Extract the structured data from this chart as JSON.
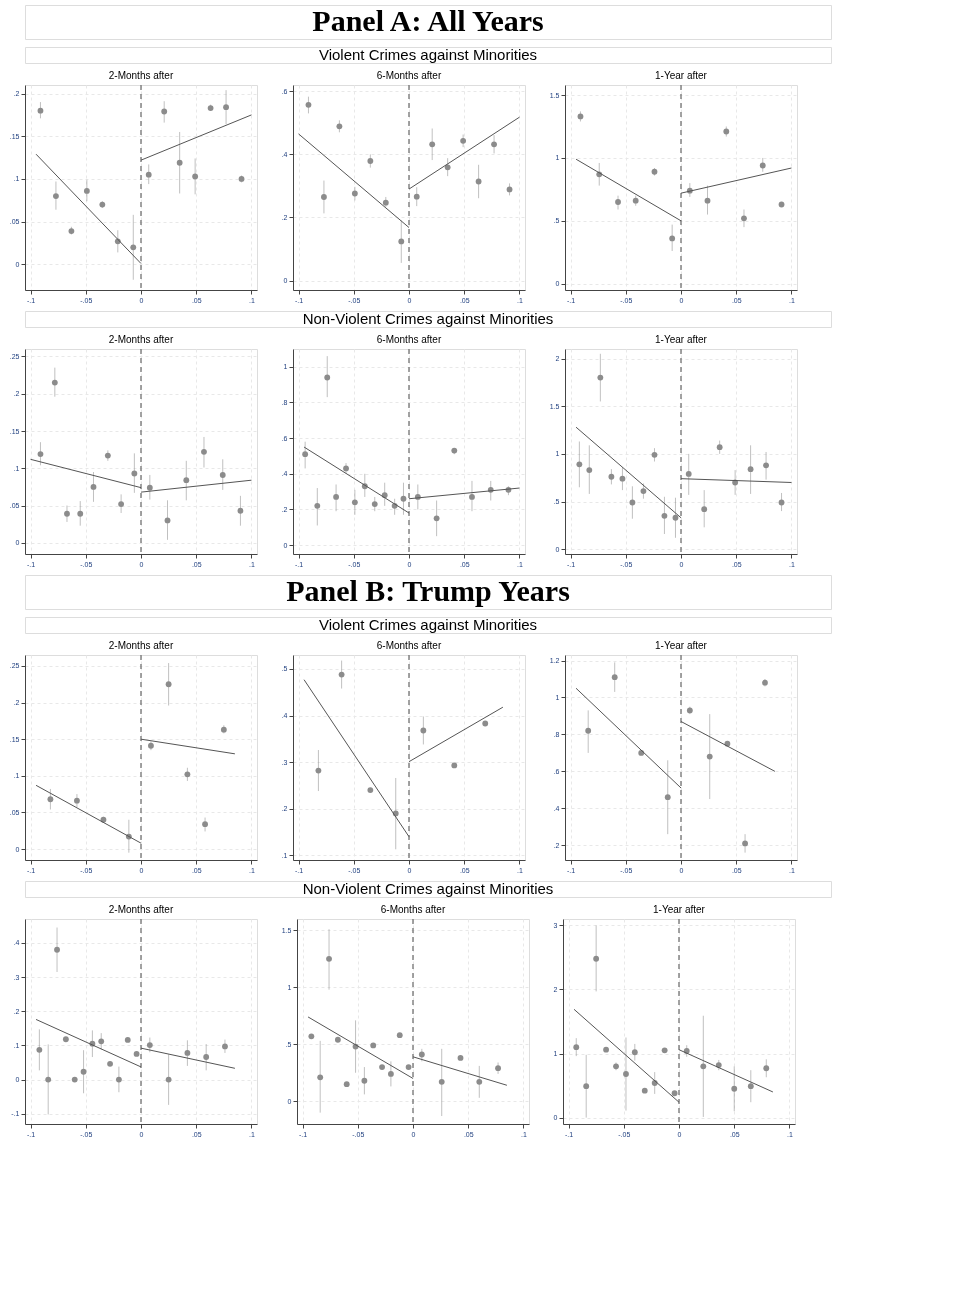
{
  "chart_data": [
    {
      "type": "scatter",
      "annotations": [
        "Panel A: All Years"
      ],
      "subtitle": "2-Months after",
      "xlim": [
        -0.105,
        0.105
      ],
      "xticks": [
        {
          "value": -0.1,
          "label": "-.1"
        },
        {
          "value": -0.05,
          "label": "-.05"
        },
        0,
        {
          "value": 0.05,
          "label": ".05"
        },
        {
          "value": 0.1,
          "label": ".1"
        }
      ],
      "ylim": [
        -0.03,
        0.21
      ],
      "yticks": [
        0,
        {
          "value": 0.05,
          "label": ".05"
        },
        {
          "value": 0.1,
          "label": ".1"
        },
        {
          "value": 0.15,
          "label": ".15"
        },
        {
          "value": 0.2,
          "label": ".2"
        }
      ],
      "grid": true,
      "series": [
        {
          "marker": "circle",
          "color": "#8c8c8c",
          "x": [
            -0.091,
            -0.077,
            -0.063,
            -0.049,
            -0.035,
            -0.021,
            -0.007,
            0.007,
            0.021,
            0.035,
            0.049,
            0.063,
            0.077,
            0.091
          ],
          "values": [
            0.18,
            0.08,
            0.039,
            0.086,
            0.07,
            0.027,
            0.02,
            0.105,
            0.179,
            0.119,
            0.103,
            0.183,
            0.184,
            0.1
          ],
          "errors": [
            [
              0.171,
              0.19
            ],
            [
              0.064,
              0.097
            ],
            [
              0.035,
              0.044
            ],
            [
              0.074,
              0.099
            ],
            [
              0.066,
              0.074
            ],
            [
              0.014,
              0.04
            ],
            [
              -0.018,
              0.058
            ],
            [
              0.094,
              0.117
            ],
            [
              0.166,
              0.191
            ],
            [
              0.083,
              0.155
            ],
            [
              0.082,
              0.124
            ],
            [
              0.18,
              0.187
            ],
            [
              0.164,
              0.204
            ],
            [
              0.096,
              0.104
            ]
          ]
        },
        {
          "type": "line",
          "marker": "none",
          "color": "#555555",
          "line_style": "solid",
          "x": [
            -0.095,
            0
          ],
          "values": [
            0.129,
            0.001
          ]
        },
        {
          "type": "line",
          "marker": "none",
          "color": "#555555",
          "line_style": "solid",
          "x": [
            0,
            0.1
          ],
          "values": [
            0.122,
            0.175
          ]
        }
      ],
      "ref_lines": [
        {
          "axis": "x",
          "value": 0,
          "color": "#666666",
          "line_style": "dashed"
        }
      ]
    },
    {
      "type": "scatter",
      "title": "Violent Crimes against Minorities",
      "subtitle": "6-Months after",
      "xlim": [
        -0.105,
        0.105
      ],
      "xticks": [
        {
          "value": -0.1,
          "label": "-.1"
        },
        {
          "value": -0.05,
          "label": "-.05"
        },
        0,
        {
          "value": 0.05,
          "label": ".05"
        },
        {
          "value": 0.1,
          "label": ".1"
        }
      ],
      "ylim": [
        -0.03,
        0.62
      ],
      "yticks": [
        0,
        {
          "value": 0.2,
          "label": ".2"
        },
        {
          "value": 0.4,
          "label": ".4"
        },
        {
          "value": 0.6,
          "label": ".6"
        }
      ],
      "grid": true,
      "series": [
        {
          "marker": "circle",
          "color": "#8c8c8c",
          "x": [
            -0.091,
            -0.077,
            -0.063,
            -0.049,
            -0.035,
            -0.021,
            -0.007,
            0.007,
            0.021,
            0.035,
            0.049,
            0.063,
            0.077,
            0.091
          ],
          "values": [
            0.557,
            0.265,
            0.489,
            0.276,
            0.379,
            0.247,
            0.124,
            0.266,
            0.432,
            0.359,
            0.443,
            0.314,
            0.432,
            0.289
          ],
          "errors": [
            [
              0.53,
              0.583
            ],
            [
              0.213,
              0.317
            ],
            [
              0.47,
              0.508
            ],
            [
              0.254,
              0.297
            ],
            [
              0.358,
              0.4
            ],
            [
              0.233,
              0.265
            ],
            [
              0.056,
              0.191
            ],
            [
              0.236,
              0.296
            ],
            [
              0.382,
              0.482
            ],
            [
              0.331,
              0.388
            ],
            [
              0.423,
              0.463
            ],
            [
              0.261,
              0.367
            ],
            [
              0.403,
              0.461
            ],
            [
              0.27,
              0.308
            ]
          ]
        },
        {
          "type": "line",
          "marker": "none",
          "color": "#555555",
          "line_style": "solid",
          "x": [
            -0.1,
            0
          ],
          "values": [
            0.465,
            0.168
          ]
        },
        {
          "type": "line",
          "marker": "none",
          "color": "#555555",
          "line_style": "solid",
          "x": [
            0,
            0.1
          ],
          "values": [
            0.29,
            0.518
          ]
        }
      ],
      "ref_lines": [
        {
          "axis": "x",
          "value": 0,
          "color": "#666666",
          "line_style": "dashed"
        }
      ]
    },
    {
      "type": "scatter",
      "subtitle": "1-Year after",
      "xlim": [
        -0.105,
        0.105
      ],
      "xticks": [
        {
          "value": -0.1,
          "label": "-.1"
        },
        {
          "value": -0.05,
          "label": "-.05"
        },
        0,
        {
          "value": 0.05,
          "label": ".05"
        },
        {
          "value": 0.1,
          "label": ".1"
        }
      ],
      "ylim": [
        -0.05,
        1.58
      ],
      "yticks": [
        0,
        {
          "value": 0.5,
          "label": ".5"
        },
        1,
        1.5
      ],
      "grid": true,
      "series": [
        {
          "marker": "circle",
          "color": "#8c8c8c",
          "x": [
            -0.091,
            -0.074,
            -0.057,
            -0.041,
            -0.024,
            -0.008,
            0.008,
            0.024,
            0.041,
            0.057,
            0.074,
            0.091
          ],
          "values": [
            1.33,
            0.87,
            0.65,
            0.66,
            0.89,
            0.36,
            0.74,
            0.66,
            1.21,
            0.52,
            0.94,
            0.63
          ],
          "errors": [
            [
              1.29,
              1.37
            ],
            [
              0.78,
              0.96
            ],
            [
              0.59,
              0.7
            ],
            [
              0.62,
              0.7
            ],
            [
              0.86,
              0.92
            ],
            [
              0.26,
              0.47
            ],
            [
              0.69,
              0.8
            ],
            [
              0.55,
              0.78
            ],
            [
              1.17,
              1.25
            ],
            [
              0.45,
              0.59
            ],
            [
              0.89,
              1.0
            ],
            [
              0.61,
              0.65
            ]
          ]
        },
        {
          "type": "line",
          "marker": "none",
          "color": "#555555",
          "line_style": "solid",
          "x": [
            -0.095,
            0
          ],
          "values": [
            0.99,
            0.5
          ]
        },
        {
          "type": "line",
          "marker": "none",
          "color": "#555555",
          "line_style": "solid",
          "x": [
            0,
            0.1
          ],
          "values": [
            0.72,
            0.92
          ]
        }
      ],
      "ref_lines": [
        {
          "axis": "x",
          "value": 0,
          "color": "#666666",
          "line_style": "dashed"
        }
      ]
    },
    {
      "type": "scatter",
      "subtitle": "2-Months after",
      "xlim": [
        -0.105,
        0.105
      ],
      "xticks": [
        {
          "value": -0.1,
          "label": "-.1"
        },
        {
          "value": -0.05,
          "label": "-.05"
        },
        0,
        {
          "value": 0.05,
          "label": ".05"
        },
        {
          "value": 0.1,
          "label": ".1"
        }
      ],
      "ylim": [
        -0.015,
        0.26
      ],
      "yticks": [
        0,
        {
          "value": 0.05,
          "label": ".05"
        },
        {
          "value": 0.1,
          "label": ".1"
        },
        {
          "value": 0.15,
          "label": ".15"
        },
        {
          "value": 0.2,
          "label": ".2"
        },
        {
          "value": 0.25,
          "label": ".25"
        }
      ],
      "grid": true,
      "series": [
        {
          "marker": "circle",
          "color": "#8c8c8c",
          "x": [
            -0.091,
            -0.078,
            -0.067,
            -0.055,
            -0.043,
            -0.03,
            -0.018,
            -0.006,
            0.008,
            0.024,
            0.041,
            0.057,
            0.074,
            0.09
          ],
          "values": [
            0.119,
            0.215,
            0.039,
            0.039,
            0.075,
            0.117,
            0.052,
            0.093,
            0.074,
            0.03,
            0.084,
            0.122,
            0.091,
            0.043
          ],
          "errors": [
            [
              0.104,
              0.135
            ],
            [
              0.196,
              0.235
            ],
            [
              0.028,
              0.05
            ],
            [
              0.023,
              0.056
            ],
            [
              0.055,
              0.095
            ],
            [
              0.11,
              0.124
            ],
            [
              0.04,
              0.065
            ],
            [
              0.067,
              0.12
            ],
            [
              0.058,
              0.091
            ],
            [
              0.004,
              0.057
            ],
            [
              0.057,
              0.11
            ],
            [
              0.101,
              0.142
            ],
            [
              0.071,
              0.112
            ],
            [
              0.023,
              0.063
            ]
          ]
        },
        {
          "type": "line",
          "marker": "none",
          "color": "#555555",
          "line_style": "solid",
          "x": [
            -0.1,
            0
          ],
          "values": [
            0.112,
            0.074
          ]
        },
        {
          "type": "line",
          "marker": "none",
          "color": "#555555",
          "line_style": "solid",
          "x": [
            0,
            0.1
          ],
          "values": [
            0.068,
            0.084
          ]
        }
      ],
      "ref_lines": [
        {
          "axis": "x",
          "value": 0,
          "color": "#666666",
          "line_style": "dashed"
        }
      ]
    },
    {
      "type": "scatter",
      "title": "Non-Violent Crimes against Minorities",
      "subtitle": "6-Months after",
      "xlim": [
        -0.105,
        0.105
      ],
      "xticks": [
        {
          "value": -0.1,
          "label": "-.1"
        },
        {
          "value": -0.05,
          "label": "-.05"
        },
        0,
        {
          "value": 0.05,
          "label": ".05"
        },
        {
          "value": 0.1,
          "label": ".1"
        }
      ],
      "ylim": [
        -0.05,
        1.1
      ],
      "yticks": [
        0,
        {
          "value": 0.2,
          "label": ".2"
        },
        {
          "value": 0.4,
          "label": ".4"
        },
        {
          "value": 0.6,
          "label": ".6"
        },
        {
          "value": 0.8,
          "label": ".8"
        },
        1
      ],
      "grid": true,
      "series": [
        {
          "marker": "circle",
          "color": "#8c8c8c",
          "x": [
            -0.094,
            -0.083,
            -0.074,
            -0.066,
            -0.057,
            -0.049,
            -0.04,
            -0.031,
            -0.022,
            -0.013,
            -0.005,
            0.008,
            0.025,
            0.041,
            0.057,
            0.074,
            0.09
          ],
          "values": [
            0.51,
            0.22,
            0.94,
            0.27,
            0.43,
            0.24,
            0.33,
            0.23,
            0.28,
            0.22,
            0.26,
            0.27,
            0.15,
            0.53,
            0.27,
            0.31,
            0.31
          ],
          "errors": [
            [
              0.43,
              0.58
            ],
            [
              0.11,
              0.32
            ],
            [
              0.83,
              1.06
            ],
            [
              0.19,
              0.34
            ],
            [
              0.4,
              0.46
            ],
            [
              0.17,
              0.31
            ],
            [
              0.27,
              0.4
            ],
            [
              0.19,
              0.27
            ],
            [
              0.22,
              0.35
            ],
            [
              0.17,
              0.26
            ],
            [
              0.17,
              0.35
            ],
            [
              0.2,
              0.34
            ],
            [
              0.05,
              0.25
            ],
            [
              0.51,
              0.54
            ],
            [
              0.19,
              0.36
            ],
            [
              0.25,
              0.36
            ],
            [
              0.28,
              0.33
            ]
          ]
        },
        {
          "type": "line",
          "marker": "none",
          "color": "#555555",
          "line_style": "solid",
          "x": [
            -0.095,
            0
          ],
          "values": [
            0.55,
            0.18
          ]
        },
        {
          "type": "line",
          "marker": "none",
          "color": "#555555",
          "line_style": "solid",
          "x": [
            0,
            0.1
          ],
          "values": [
            0.26,
            0.32
          ]
        }
      ],
      "ref_lines": [
        {
          "axis": "x",
          "value": 0,
          "color": "#666666",
          "line_style": "dashed"
        }
      ]
    },
    {
      "type": "scatter",
      "subtitle": "1-Year after",
      "xlim": [
        -0.105,
        0.105
      ],
      "xticks": [
        {
          "value": -0.1,
          "label": "-.1"
        },
        {
          "value": -0.05,
          "label": "-.05"
        },
        0,
        {
          "value": 0.05,
          "label": ".05"
        },
        {
          "value": 0.1,
          "label": ".1"
        }
      ],
      "ylim": [
        -0.05,
        2.1
      ],
      "yticks": [
        0,
        {
          "value": 0.5,
          "label": ".5"
        },
        1,
        1.5,
        2
      ],
      "grid": true,
      "series": [
        {
          "marker": "circle",
          "color": "#8c8c8c",
          "x": [
            -0.092,
            -0.083,
            -0.073,
            -0.063,
            -0.053,
            -0.044,
            -0.034,
            -0.024,
            -0.015,
            -0.005,
            0.007,
            0.021,
            0.035,
            0.049,
            0.063,
            0.077,
            0.091
          ],
          "values": [
            0.89,
            0.83,
            1.8,
            0.76,
            0.74,
            0.49,
            0.61,
            0.99,
            0.35,
            0.33,
            0.79,
            0.42,
            1.07,
            0.7,
            0.84,
            0.88,
            0.49
          ],
          "errors": [
            [
              0.65,
              1.13
            ],
            [
              0.58,
              1.09
            ],
            [
              1.55,
              2.05
            ],
            [
              0.68,
              0.84
            ],
            [
              0.62,
              0.86
            ],
            [
              0.32,
              0.66
            ],
            [
              0.53,
              0.69
            ],
            [
              0.92,
              1.06
            ],
            [
              0.16,
              0.55
            ],
            [
              0.12,
              0.54
            ],
            [
              0.57,
              1.0
            ],
            [
              0.23,
              0.62
            ],
            [
              1.0,
              1.14
            ],
            [
              0.57,
              0.83
            ],
            [
              0.58,
              1.09
            ],
            [
              0.73,
              1.02
            ],
            [
              0.4,
              0.59
            ]
          ]
        },
        {
          "type": "line",
          "marker": "none",
          "color": "#555555",
          "line_style": "solid",
          "x": [
            -0.095,
            0
          ],
          "values": [
            1.28,
            0.33
          ]
        },
        {
          "type": "line",
          "marker": "none",
          "color": "#555555",
          "line_style": "solid",
          "x": [
            0,
            0.1
          ],
          "values": [
            0.74,
            0.7
          ]
        }
      ],
      "ref_lines": [
        {
          "axis": "x",
          "value": 0,
          "color": "#666666",
          "line_style": "dashed"
        }
      ]
    },
    {
      "type": "scatter",
      "annotations": [
        "Panel B: Trump Years"
      ],
      "subtitle": "2-Months after",
      "xlim": [
        -0.105,
        0.105
      ],
      "xticks": [
        {
          "value": -0.1,
          "label": "-.1"
        },
        {
          "value": -0.05,
          "label": "-.05"
        },
        0,
        {
          "value": 0.05,
          "label": ".05"
        },
        {
          "value": 0.1,
          "label": ".1"
        }
      ],
      "ylim": [
        -0.015,
        0.265
      ],
      "yticks": [
        0,
        {
          "value": 0.05,
          "label": ".05"
        },
        {
          "value": 0.1,
          "label": ".1"
        },
        {
          "value": 0.15,
          "label": ".15"
        },
        {
          "value": 0.2,
          "label": ".2"
        },
        {
          "value": 0.25,
          "label": ".25"
        }
      ],
      "grid": true,
      "series": [
        {
          "marker": "circle",
          "color": "#8c8c8c",
          "x": [
            -0.082,
            -0.058,
            -0.034,
            -0.011,
            0.009,
            0.025,
            0.042,
            0.058,
            0.075
          ],
          "values": [
            0.068,
            0.066,
            0.04,
            0.017,
            0.141,
            0.225,
            0.102,
            0.034,
            0.163
          ],
          "errors": [
            [
              0.054,
              0.082
            ],
            [
              0.057,
              0.075
            ],
            [
              0.036,
              0.044
            ],
            [
              -0.005,
              0.04
            ],
            [
              0.135,
              0.147
            ],
            [
              0.196,
              0.254
            ],
            [
              0.093,
              0.111
            ],
            [
              0.024,
              0.043
            ],
            [
              0.158,
              0.169
            ]
          ]
        },
        {
          "type": "line",
          "marker": "none",
          "color": "#555555",
          "line_style": "solid",
          "x": [
            -0.095,
            0
          ],
          "values": [
            0.087,
            0.008
          ]
        },
        {
          "type": "line",
          "marker": "none",
          "color": "#555555",
          "line_style": "solid",
          "x": [
            0,
            0.085
          ],
          "values": [
            0.15,
            0.13
          ]
        }
      ],
      "ref_lines": [
        {
          "axis": "x",
          "value": 0,
          "color": "#666666",
          "line_style": "dashed"
        }
      ]
    },
    {
      "type": "scatter",
      "title": "Violent Crimes against Minorities",
      "subtitle": "6-Months after",
      "xlim": [
        -0.105,
        0.105
      ],
      "xticks": [
        {
          "value": -0.1,
          "label": "-.1"
        },
        {
          "value": -0.05,
          "label": "-.05"
        },
        0,
        {
          "value": 0.05,
          "label": ".05"
        },
        {
          "value": 0.1,
          "label": ".1"
        }
      ],
      "ylim": [
        0.09,
        0.53
      ],
      "yticks": [
        {
          "value": 0.1,
          "label": ".1"
        },
        {
          "value": 0.2,
          "label": ".2"
        },
        {
          "value": 0.3,
          "label": ".3"
        },
        {
          "value": 0.4,
          "label": ".4"
        },
        {
          "value": 0.5,
          "label": ".5"
        }
      ],
      "grid": true,
      "series": [
        {
          "marker": "circle",
          "color": "#8c8c8c",
          "x": [
            -0.082,
            -0.061,
            -0.035,
            -0.012,
            0.013,
            0.041,
            0.069
          ],
          "values": [
            0.282,
            0.488,
            0.24,
            0.19,
            0.368,
            0.293,
            0.383
          ],
          "errors": [
            [
              0.238,
              0.326
            ],
            [
              0.458,
              0.518
            ],
            null,
            [
              0.113,
              0.266
            ],
            [
              0.338,
              0.398
            ],
            null,
            null
          ]
        },
        {
          "type": "line",
          "marker": "none",
          "color": "#555555",
          "line_style": "solid",
          "x": [
            -0.095,
            0
          ],
          "values": [
            0.477,
            0.14
          ]
        },
        {
          "type": "line",
          "marker": "none",
          "color": "#555555",
          "line_style": "solid",
          "x": [
            0,
            0.085
          ],
          "values": [
            0.301,
            0.418
          ]
        }
      ],
      "ref_lines": [
        {
          "axis": "x",
          "value": 0,
          "color": "#666666",
          "line_style": "dashed"
        }
      ]
    },
    {
      "type": "scatter",
      "subtitle": "1-Year after",
      "xlim": [
        -0.105,
        0.105
      ],
      "xticks": [
        {
          "value": -0.1,
          "label": "-.1"
        },
        {
          "value": -0.05,
          "label": "-.05"
        },
        0,
        {
          "value": 0.05,
          "label": ".05"
        },
        {
          "value": 0.1,
          "label": ".1"
        }
      ],
      "ylim": [
        0.12,
        1.23
      ],
      "yticks": [
        {
          "value": 0.2,
          "label": ".2"
        },
        {
          "value": 0.4,
          "label": ".4"
        },
        {
          "value": 0.6,
          "label": ".6"
        },
        {
          "value": 0.8,
          "label": ".8"
        },
        1,
        1.2
      ],
      "grid": true,
      "series": [
        {
          "marker": "circle",
          "color": "#8c8c8c",
          "x": [
            -0.084,
            -0.06,
            -0.036,
            -0.012,
            0.008,
            0.026,
            0.042,
            0.058,
            0.076
          ],
          "values": [
            0.82,
            1.11,
            0.7,
            0.46,
            0.93,
            0.68,
            0.75,
            0.21,
            1.08
          ],
          "errors": [
            [
              0.7,
              0.93
            ],
            [
              1.03,
              1.19
            ],
            null,
            [
              0.26,
              0.66
            ],
            [
              0.91,
              0.95
            ],
            [
              0.45,
              0.91
            ],
            null,
            [
              0.16,
              0.26
            ],
            [
              1.06,
              1.1
            ]
          ]
        },
        {
          "type": "line",
          "marker": "none",
          "color": "#555555",
          "line_style": "solid",
          "x": [
            -0.095,
            0
          ],
          "values": [
            1.05,
            0.51
          ]
        },
        {
          "type": "line",
          "marker": "none",
          "color": "#555555",
          "line_style": "solid",
          "x": [
            0,
            0.085
          ],
          "values": [
            0.87,
            0.6
          ]
        }
      ],
      "ref_lines": [
        {
          "axis": "x",
          "value": 0,
          "color": "#666666",
          "line_style": "dashed"
        }
      ]
    },
    {
      "type": "scatter",
      "subtitle": "2-Months after",
      "xlim": [
        -0.105,
        0.105
      ],
      "xticks": [
        {
          "value": -0.1,
          "label": "-.1"
        },
        {
          "value": -0.05,
          "label": "-.05"
        },
        0,
        {
          "value": 0.05,
          "label": ".05"
        },
        {
          "value": 0.1,
          "label": ".1"
        }
      ],
      "ylim": [
        -0.13,
        0.47
      ],
      "yticks": [
        {
          "value": -0.1,
          "label": "-.1"
        },
        0,
        {
          "value": 0.1,
          "label": ".1"
        },
        {
          "value": 0.2,
          "label": ".2"
        },
        {
          "value": 0.3,
          "label": ".3"
        },
        {
          "value": 0.4,
          "label": ".4"
        }
      ],
      "grid": true,
      "series": [
        {
          "marker": "circle",
          "color": "#8c8c8c",
          "x": [
            -0.092,
            -0.084,
            -0.076,
            -0.068,
            -0.06,
            -0.052,
            -0.044,
            -0.036,
            -0.028,
            -0.02,
            -0.012,
            -0.004,
            0.008,
            0.025,
            0.042,
            0.059,
            0.076
          ],
          "values": [
            0.087,
            0.0,
            0.38,
            0.118,
            0.0,
            0.023,
            0.105,
            0.112,
            0.046,
            0.0,
            0.116,
            0.075,
            0.101,
            0.0,
            0.078,
            0.066,
            0.097
          ],
          "errors": [
            [
              0.027,
              0.147
            ],
            [
              -0.102,
              0.103
            ],
            [
              0.315,
              0.445
            ],
            null,
            null,
            [
              -0.04,
              0.086
            ],
            [
              0.066,
              0.144
            ],
            [
              0.088,
              0.136
            ],
            null,
            [
              -0.037,
              0.038
            ],
            null,
            null,
            [
              0.08,
              0.123
            ],
            [
              -0.074,
              0.074
            ],
            [
              0.04,
              0.115
            ],
            [
              0.027,
              0.104
            ],
            [
              0.078,
              0.117
            ]
          ]
        },
        {
          "type": "line",
          "marker": "none",
          "color": "#555555",
          "line_style": "solid",
          "x": [
            -0.095,
            0
          ],
          "values": [
            0.176,
            0.037
          ]
        },
        {
          "type": "line",
          "marker": "none",
          "color": "#555555",
          "line_style": "solid",
          "x": [
            0,
            0.085
          ],
          "values": [
            0.092,
            0.033
          ]
        }
      ],
      "ref_lines": [
        {
          "axis": "x",
          "value": 0,
          "color": "#666666",
          "line_style": "dashed"
        }
      ]
    },
    {
      "type": "scatter",
      "title": "Non-Violent Crimes against Minorities",
      "subtitle": "6-Months after",
      "xlim": [
        -0.105,
        0.105
      ],
      "xticks": [
        {
          "value": -0.1,
          "label": "-.1"
        },
        {
          "value": -0.05,
          "label": "-.05"
        },
        0,
        {
          "value": 0.05,
          "label": ".05"
        },
        {
          "value": 0.1,
          "label": ".1"
        }
      ],
      "ylim": [
        -0.2,
        1.6
      ],
      "yticks": [
        0,
        {
          "value": 0.5,
          "label": ".5"
        },
        1,
        1.5
      ],
      "grid": true,
      "series": [
        {
          "marker": "circle",
          "color": "#8c8c8c",
          "x": [
            -0.092,
            -0.084,
            -0.076,
            -0.068,
            -0.06,
            -0.052,
            -0.044,
            -0.036,
            -0.028,
            -0.02,
            -0.012,
            -0.004,
            0.008,
            0.026,
            0.043,
            0.06,
            0.077
          ],
          "values": [
            0.57,
            0.21,
            1.25,
            0.54,
            0.15,
            0.48,
            0.18,
            0.49,
            0.3,
            0.24,
            0.58,
            0.3,
            0.41,
            0.17,
            0.38,
            0.17,
            0.29
          ],
          "errors": [
            null,
            [
              -0.1,
              0.53
            ],
            [
              0.98,
              1.51
            ],
            null,
            null,
            [
              0.25,
              0.71
            ],
            [
              0.06,
              0.3
            ],
            null,
            null,
            [
              0.13,
              0.35
            ],
            null,
            null,
            [
              0.35,
              0.46
            ],
            [
              -0.13,
              0.46
            ],
            null,
            [
              0.03,
              0.31
            ],
            [
              0.24,
              0.34
            ]
          ]
        },
        {
          "type": "line",
          "marker": "none",
          "color": "#555555",
          "line_style": "solid",
          "x": [
            -0.095,
            0
          ],
          "values": [
            0.74,
            0.2
          ]
        },
        {
          "type": "line",
          "marker": "none",
          "color": "#555555",
          "line_style": "solid",
          "x": [
            0,
            0.085
          ],
          "values": [
            0.39,
            0.14
          ]
        }
      ],
      "ref_lines": [
        {
          "axis": "x",
          "value": 0,
          "color": "#666666",
          "line_style": "dashed"
        }
      ]
    },
    {
      "type": "scatter",
      "subtitle": "1-Year after",
      "xlim": [
        -0.105,
        0.105
      ],
      "xticks": [
        {
          "value": -0.1,
          "label": "-.1"
        },
        {
          "value": -0.05,
          "label": "-.05"
        },
        0,
        {
          "value": 0.05,
          "label": ".05"
        },
        {
          "value": 0.1,
          "label": ".1"
        }
      ],
      "ylim": [
        -0.1,
        3.1
      ],
      "yticks": [
        0,
        1,
        2,
        3
      ],
      "grid": true,
      "series": [
        {
          "marker": "circle",
          "color": "#8c8c8c",
          "x": [
            -0.093,
            -0.084,
            -0.075,
            -0.066,
            -0.057,
            -0.048,
            -0.04,
            -0.031,
            -0.022,
            -0.013,
            -0.004,
            0.007,
            0.022,
            0.036,
            0.05,
            0.065,
            0.079
          ],
          "values": [
            1.1,
            0.49,
            2.48,
            1.06,
            0.8,
            0.68,
            1.02,
            0.42,
            0.54,
            1.05,
            0.38,
            1.04,
            0.8,
            0.82,
            0.45,
            0.49,
            0.77
          ],
          "errors": [
            [
              0.96,
              1.24
            ],
            [
              0.0,
              0.98
            ],
            [
              1.97,
              3.0
            ],
            null,
            [
              0.74,
              0.86
            ],
            [
              0.11,
              1.25
            ],
            [
              0.89,
              1.15
            ],
            null,
            [
              0.37,
              0.71
            ],
            null,
            null,
            [
              0.95,
              1.13
            ],
            [
              0.01,
              1.59
            ],
            [
              0.74,
              0.9
            ],
            [
              0.1,
              0.8
            ],
            [
              0.24,
              0.74
            ],
            [
              0.63,
              0.91
            ]
          ]
        },
        {
          "type": "line",
          "marker": "none",
          "color": "#555555",
          "line_style": "solid",
          "x": [
            -0.095,
            0
          ],
          "values": [
            1.69,
            0.24
          ]
        },
        {
          "type": "line",
          "marker": "none",
          "color": "#555555",
          "line_style": "solid",
          "x": [
            0,
            0.085
          ],
          "values": [
            1.06,
            0.4
          ]
        }
      ],
      "ref_lines": [
        {
          "axis": "x",
          "value": 0,
          "color": "#666666",
          "line_style": "dashed"
        }
      ]
    }
  ]
}
